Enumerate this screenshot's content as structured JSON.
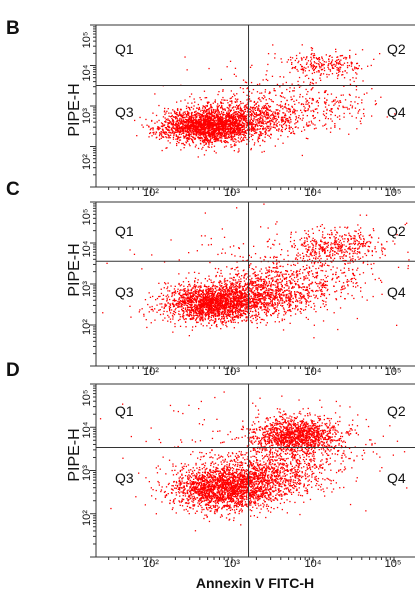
{
  "chart_data": [
    {
      "type": "scatter",
      "panel_label": "B",
      "ylabel": "PIPE-H",
      "xlabel": "",
      "x_scale": "log",
      "y_scale": "log",
      "xlim": [
        10,
        100000
      ],
      "ylim": [
        10,
        100000
      ],
      "x_ticks": [
        "10²",
        "10³",
        "10⁴",
        "10⁵"
      ],
      "y_ticks": [
        "10²",
        "10³",
        "10⁴",
        "10⁵"
      ],
      "gate": {
        "x": 1600,
        "y": 3200
      },
      "quadrants": [
        "Q1",
        "Q2",
        "Q3",
        "Q4"
      ],
      "point_color": "#ff0000",
      "clusters": [
        {
          "cx": 480,
          "cy": 320,
          "sx": 0.28,
          "sy": 0.19,
          "n": 2000
        },
        {
          "cx": 1500,
          "cy": 500,
          "sx": 0.32,
          "sy": 0.24,
          "n": 900
        },
        {
          "cx": 9000,
          "cy": 1000,
          "sx": 0.4,
          "sy": 0.33,
          "n": 260
        },
        {
          "cx": 14000,
          "cy": 10500,
          "sx": 0.26,
          "sy": 0.14,
          "n": 240
        },
        {
          "cx": 3000,
          "cy": 2000,
          "sx": 0.7,
          "sy": 0.6,
          "n": 120
        }
      ]
    },
    {
      "type": "scatter",
      "panel_label": "C",
      "ylabel": "PIPE-H",
      "xlabel": "",
      "x_scale": "log",
      "y_scale": "log",
      "xlim": [
        10,
        100000
      ],
      "ylim": [
        10,
        100000
      ],
      "x_ticks": [
        "10²",
        "10³",
        "10⁴",
        "10⁵"
      ],
      "y_ticks": [
        "10²",
        "10³",
        "10⁴",
        "10⁵"
      ],
      "gate": {
        "x": 1600,
        "y": 3600
      },
      "quadrants": [
        "Q1",
        "Q2",
        "Q3",
        "Q4"
      ],
      "point_color": "#ff0000",
      "clusters": [
        {
          "cx": 550,
          "cy": 330,
          "sx": 0.3,
          "sy": 0.2,
          "n": 1700
        },
        {
          "cx": 1700,
          "cy": 520,
          "sx": 0.35,
          "sy": 0.25,
          "n": 1000
        },
        {
          "cx": 8000,
          "cy": 1300,
          "sx": 0.4,
          "sy": 0.33,
          "n": 450
        },
        {
          "cx": 20000,
          "cy": 9000,
          "sx": 0.3,
          "sy": 0.18,
          "n": 400
        },
        {
          "cx": 3000,
          "cy": 2500,
          "sx": 0.75,
          "sy": 0.6,
          "n": 180
        }
      ]
    },
    {
      "type": "scatter",
      "panel_label": "D",
      "ylabel": "PIPE-H",
      "xlabel": "Annexin V FITC-H",
      "x_scale": "log",
      "y_scale": "log",
      "xlim": [
        10,
        100000
      ],
      "ylim": [
        10,
        100000
      ],
      "x_ticks": [
        "10²",
        "10³",
        "10⁴",
        "10⁵"
      ],
      "y_ticks": [
        "10²",
        "10³",
        "10⁴",
        "10⁵"
      ],
      "gate": {
        "x": 1600,
        "y": 3400
      },
      "quadrants": [
        "Q1",
        "Q2",
        "Q3",
        "Q4"
      ],
      "point_color": "#ff0000",
      "clusters": [
        {
          "cx": 700,
          "cy": 400,
          "sx": 0.32,
          "sy": 0.24,
          "n": 1700
        },
        {
          "cx": 2000,
          "cy": 600,
          "sx": 0.36,
          "sy": 0.28,
          "n": 900
        },
        {
          "cx": 6500,
          "cy": 7000,
          "sx": 0.28,
          "sy": 0.17,
          "n": 1200
        },
        {
          "cx": 5000,
          "cy": 2000,
          "sx": 0.42,
          "sy": 0.3,
          "n": 450
        },
        {
          "cx": 3000,
          "cy": 3000,
          "sx": 0.8,
          "sy": 0.65,
          "n": 200
        }
      ]
    }
  ]
}
